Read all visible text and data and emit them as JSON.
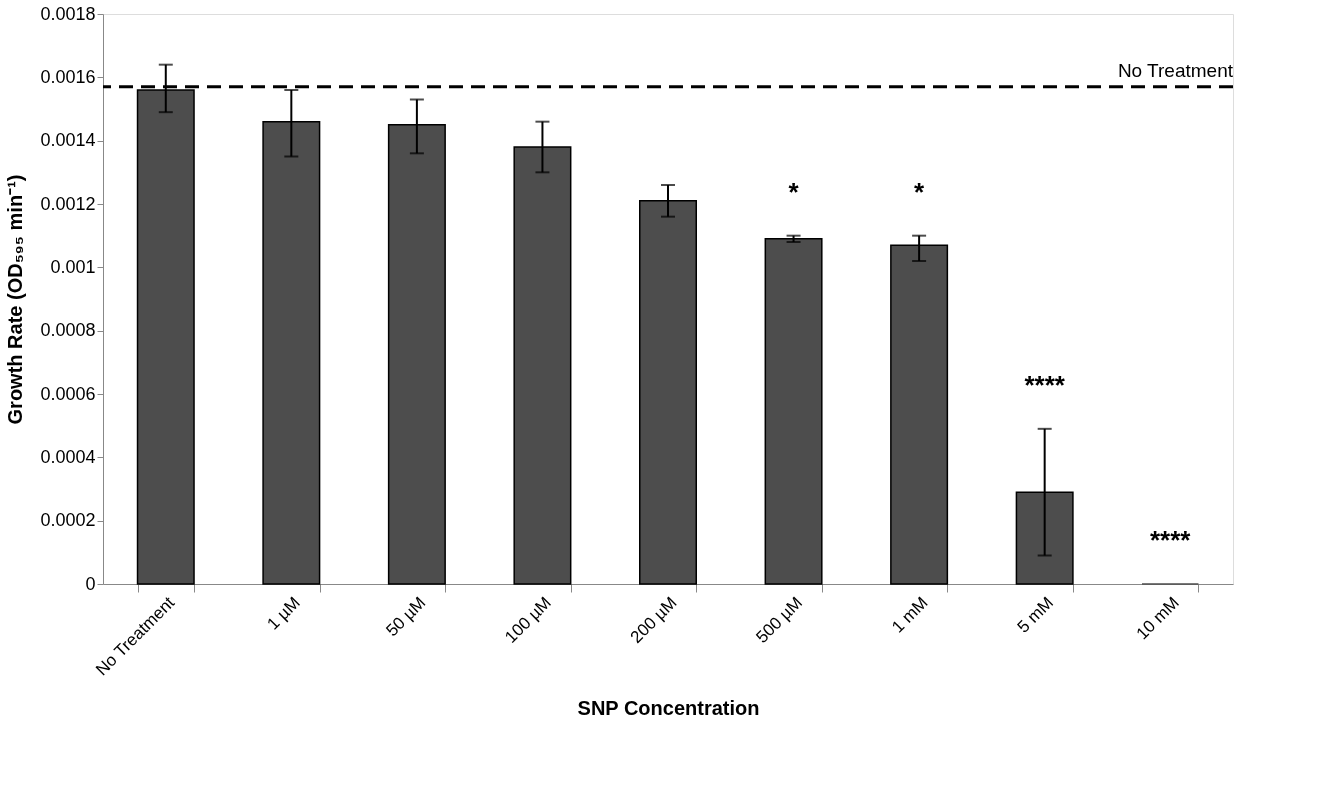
{
  "chart_data": {
    "type": "bar",
    "xlabel": "SNP Concentration",
    "ylabel": "Growth Rate (OD₅₉₅ min⁻¹)",
    "categories": [
      "No Treatment",
      "1 µM",
      "50 µM",
      "100 µM",
      "200 µM",
      "500 µM",
      "1 mM",
      "5 mM",
      "10 mM"
    ],
    "values": [
      0.00156,
      0.00146,
      0.00145,
      0.00138,
      0.00121,
      0.00109,
      0.00107,
      0.00029,
      0
    ],
    "errors": [
      [
        0.00149,
        0.00164
      ],
      [
        0.00135,
        0.00156
      ],
      [
        0.00136,
        0.00153
      ],
      [
        0.0013,
        0.00146
      ],
      [
        0.00116,
        0.00126
      ],
      [
        0.00108,
        0.0011
      ],
      [
        0.00102,
        0.0011
      ],
      [
        9e-05,
        0.00049
      ],
      null
    ],
    "color": "#4d4d4d",
    "ylim": [
      0,
      0.0018
    ],
    "yticks": [
      0,
      0.0002,
      0.0004,
      0.0006,
      0.0008,
      0.001,
      0.0012,
      0.0014,
      0.0016,
      0.0018
    ],
    "grid": false,
    "ref_lines": [
      {
        "axis": "y",
        "value": 0.00157,
        "label": "No Treatment",
        "color": "#000000",
        "line_style": "dashed"
      }
    ],
    "annotations": [
      "*",
      "*",
      "****",
      "****"
    ]
  }
}
